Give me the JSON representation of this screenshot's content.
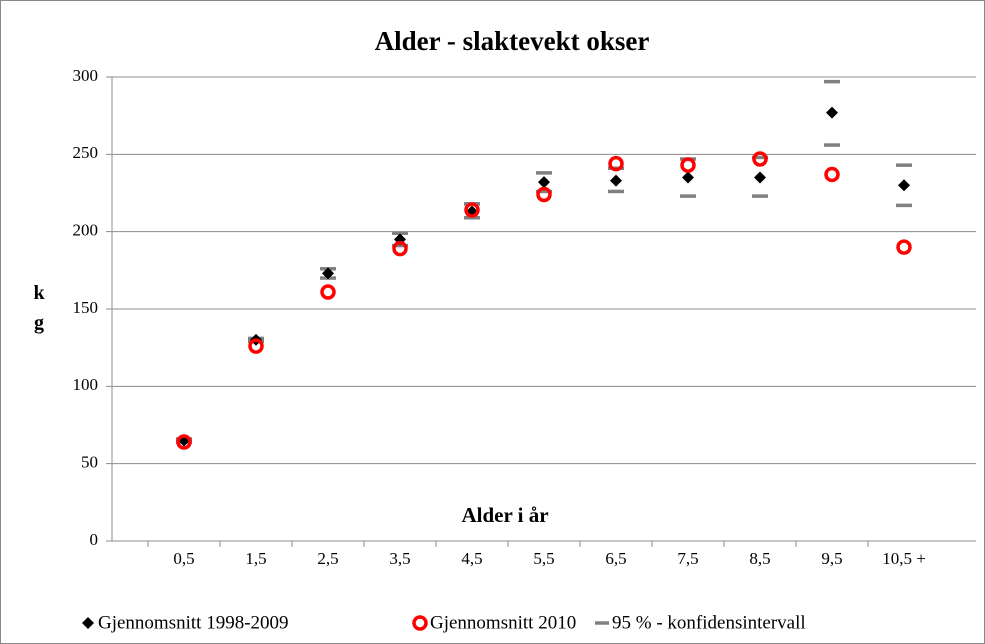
{
  "chart_data": {
    "type": "scatter-ci",
    "title": "Alder - slaktevekt okser",
    "y_label": "kg",
    "x_annotation": "Alder i år",
    "categories": [
      "0,5",
      "1,5",
      "2,5",
      "3,5",
      "4,5",
      "5,5",
      "6,5",
      "7,5",
      "8,5",
      "9,5",
      "10,5 +"
    ],
    "series": [
      {
        "name": "Gjennomsnitt 1998-2009",
        "color": "#000000",
        "marker": "diamond",
        "values": [
          65,
          130,
          173,
          195,
          213,
          232,
          233,
          235,
          235,
          277,
          230
        ]
      },
      {
        "name": "Gjennomsnitt 2010",
        "color": "#ff0000",
        "marker": "circle",
        "values": [
          64,
          126,
          161,
          189,
          214,
          224,
          244,
          243,
          247,
          237,
          190
        ]
      },
      {
        "name": "95 % - konfidensintervall",
        "color": "#808080",
        "marker": "dash",
        "lower": [
          64,
          129,
          170,
          191,
          209,
          226,
          226,
          223,
          223,
          256,
          217
        ],
        "upper": [
          66,
          131,
          176,
          199,
          218,
          238,
          241,
          247,
          248,
          297,
          243
        ]
      }
    ],
    "ylim": [
      0,
      300
    ],
    "yticks": [
      0,
      50,
      100,
      150,
      200,
      250,
      300
    ],
    "grid": true
  }
}
